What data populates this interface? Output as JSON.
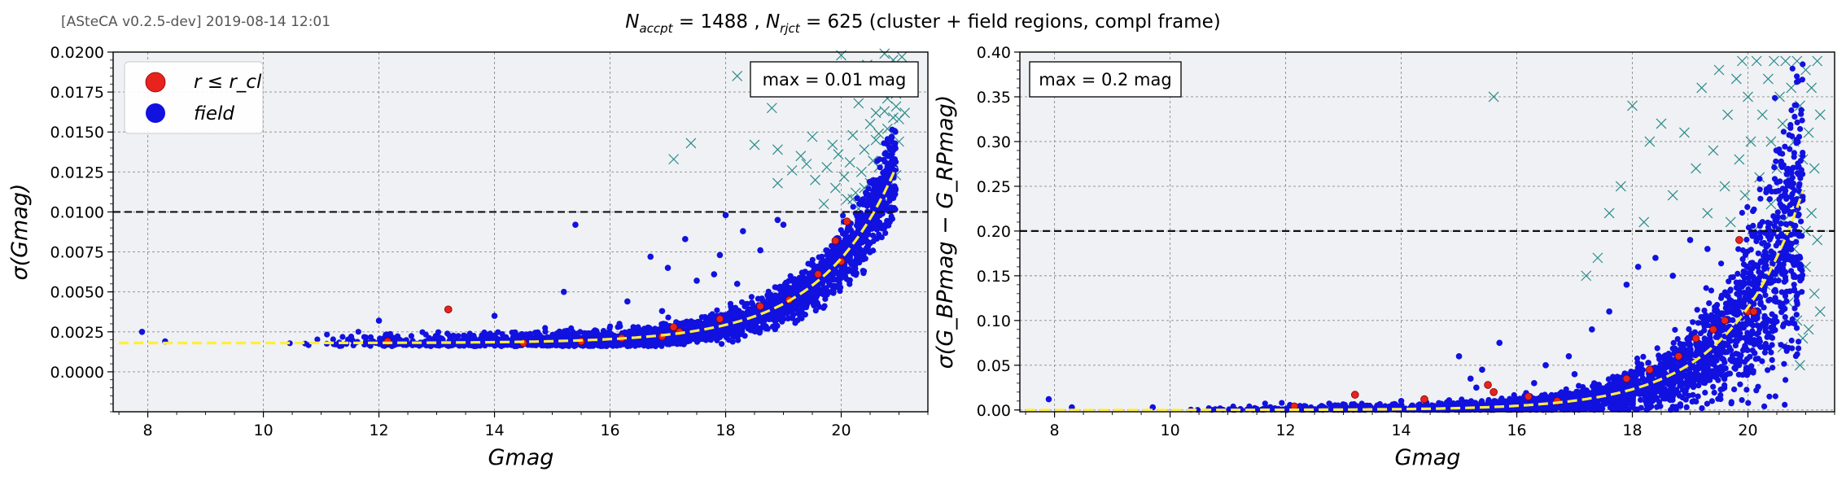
{
  "header": {
    "version_stamp": "[ASteCA v0.2.5-dev] 2019-08-14 12:01",
    "title_n_accpt": "1488",
    "title_n_rjct": "625",
    "title_suffix": "(cluster + field regions, compl frame)"
  },
  "colors": {
    "background": "#eff1f4",
    "cluster": "#e8231e",
    "field": "#1111e0",
    "rejected": "#2b8a8a",
    "fit_curve": "#ffef3a",
    "max_line": "#111111",
    "grid": "#8a8a8a"
  },
  "legend": {
    "cluster_label": "r ≤ r_cl",
    "field_label": "field"
  },
  "chart_data": [
    {
      "type": "scatter",
      "xlabel": "Gmag",
      "ylabel": "σ(Gmag)",
      "xlim": [
        7.4,
        21.5
      ],
      "ylim": [
        -0.0025,
        0.02
      ],
      "xticks": [
        8,
        10,
        12,
        14,
        16,
        18,
        20
      ],
      "yticks": [
        0.0,
        0.0025,
        0.005,
        0.0075,
        0.01,
        0.0125,
        0.015,
        0.0175,
        0.02
      ],
      "ytick_labels": [
        "0.0000",
        "0.0025",
        "0.0050",
        "0.0075",
        "0.0100",
        "0.0125",
        "0.0150",
        "0.0175",
        "0.0200"
      ],
      "max_line": 0.01,
      "annotation": "max = 0.01 mag",
      "legend": "top-left",
      "grid": true,
      "fit_curve": {
        "floor": 0.0018,
        "amp": 3.5e-07,
        "rate": 0.77,
        "x0": 7.5,
        "x1": 20.95
      },
      "rejected_points": [
        [
          18.2,
          0.0185
        ],
        [
          18.6,
          0.0179
        ],
        [
          18.8,
          0.0165
        ],
        [
          17.1,
          0.0133
        ],
        [
          17.4,
          0.0143
        ],
        [
          18.5,
          0.0142
        ],
        [
          18.9,
          0.0139
        ],
        [
          18.9,
          0.0118
        ],
        [
          19.15,
          0.0126
        ],
        [
          19.3,
          0.0135
        ],
        [
          19.4,
          0.013
        ],
        [
          19.5,
          0.0147
        ],
        [
          19.55,
          0.012
        ],
        [
          19.7,
          0.0105
        ],
        [
          19.75,
          0.0128
        ],
        [
          19.85,
          0.0142
        ],
        [
          19.9,
          0.0115
        ],
        [
          19.95,
          0.0136
        ],
        [
          20.0,
          0.0198
        ],
        [
          20.05,
          0.0122
        ],
        [
          20.1,
          0.0108
        ],
        [
          20.15,
          0.0131
        ],
        [
          20.2,
          0.0148
        ],
        [
          20.25,
          0.0112
        ],
        [
          20.3,
          0.0168
        ],
        [
          20.35,
          0.0125
        ],
        [
          20.4,
          0.0139
        ],
        [
          20.45,
          0.0192
        ],
        [
          20.5,
          0.0155
        ],
        [
          20.5,
          0.0118
        ],
        [
          20.55,
          0.0184
        ],
        [
          20.6,
          0.0145
        ],
        [
          20.6,
          0.0162
        ],
        [
          20.65,
          0.0128
        ],
        [
          20.7,
          0.0178
        ],
        [
          20.7,
          0.0105
        ],
        [
          20.75,
          0.0199
        ],
        [
          20.8,
          0.0152
        ],
        [
          20.8,
          0.0171
        ],
        [
          20.85,
          0.0136
        ],
        [
          20.85,
          0.0188
        ],
        [
          20.9,
          0.0159
        ],
        [
          20.9,
          0.0195
        ],
        [
          20.95,
          0.0166
        ],
        [
          20.95,
          0.0123
        ],
        [
          21.0,
          0.0183
        ],
        [
          21.0,
          0.0144
        ],
        [
          21.05,
          0.0176
        ],
        [
          21.05,
          0.0197
        ],
        [
          21.1,
          0.0162
        ],
        [
          21.1,
          0.0189
        ],
        [
          20.3,
          0.0102
        ],
        [
          20.4,
          0.0115
        ],
        [
          20.2,
          0.0108
        ],
        [
          20.55,
          0.0132
        ],
        [
          20.65,
          0.0149
        ],
        [
          20.75,
          0.0163
        ],
        [
          20.95,
          0.0174
        ],
        [
          21.0,
          0.0158
        ],
        [
          20.85,
          0.0119
        ]
      ],
      "field_outliers": [
        [
          7.9,
          0.0025
        ],
        [
          8.3,
          0.0019
        ],
        [
          12.0,
          0.0032
        ],
        [
          15.4,
          0.0092
        ],
        [
          15.2,
          0.005
        ],
        [
          14.0,
          0.0035
        ],
        [
          16.7,
          0.0072
        ],
        [
          17.0,
          0.0065
        ],
        [
          17.3,
          0.0083
        ],
        [
          18.0,
          0.0098
        ],
        [
          18.3,
          0.0088
        ],
        [
          17.8,
          0.0061
        ],
        [
          16.3,
          0.0044
        ],
        [
          18.6,
          0.0076
        ],
        [
          19.0,
          0.0092
        ],
        [
          17.5,
          0.0057
        ],
        [
          16.9,
          0.0038
        ],
        [
          18.9,
          0.0095
        ],
        [
          17.9,
          0.0073
        ],
        [
          18.2,
          0.0055
        ]
      ],
      "cluster_points": [
        [
          13.2,
          0.0039
        ],
        [
          12.15,
          0.0019
        ],
        [
          14.5,
          0.0018
        ],
        [
          15.5,
          0.0019
        ],
        [
          16.2,
          0.0021
        ],
        [
          17.1,
          0.0028
        ],
        [
          17.2,
          0.0025
        ],
        [
          17.9,
          0.0033
        ],
        [
          18.6,
          0.0041
        ],
        [
          19.1,
          0.0045
        ],
        [
          19.6,
          0.0061
        ],
        [
          19.9,
          0.0082
        ],
        [
          20.0,
          0.0069
        ],
        [
          20.1,
          0.0094
        ],
        [
          16.9,
          0.0022
        ]
      ]
    },
    {
      "type": "scatter",
      "xlabel": "Gmag",
      "ylabel": "σ(G_BPmag − G_RPmag)",
      "xlim": [
        7.4,
        21.5
      ],
      "ylim": [
        -0.002,
        0.4
      ],
      "xticks": [
        8,
        10,
        12,
        14,
        16,
        18,
        20
      ],
      "yticks": [
        0.0,
        0.05,
        0.1,
        0.15,
        0.2,
        0.25,
        0.3,
        0.35,
        0.4
      ],
      "ytick_labels": [
        "0.00",
        "0.05",
        "0.10",
        "0.15",
        "0.20",
        "0.25",
        "0.30",
        "0.35",
        "0.40"
      ],
      "max_line": 0.2,
      "annotation": "max = 0.2 mag",
      "grid": true,
      "fit_curve": {
        "floor": 0.0,
        "amp": 5.2e-06,
        "rate": 0.8,
        "x0": 7.5,
        "x1": 20.95
      },
      "rejected_points": [
        [
          15.6,
          0.35
        ],
        [
          18.0,
          0.34
        ],
        [
          18.3,
          0.3
        ],
        [
          17.8,
          0.25
        ],
        [
          17.6,
          0.22
        ],
        [
          17.4,
          0.17
        ],
        [
          17.2,
          0.15
        ],
        [
          18.2,
          0.21
        ],
        [
          18.5,
          0.32
        ],
        [
          18.7,
          0.24
        ],
        [
          18.9,
          0.31
        ],
        [
          19.1,
          0.27
        ],
        [
          19.2,
          0.36
        ],
        [
          19.3,
          0.22
        ],
        [
          19.4,
          0.29
        ],
        [
          19.5,
          0.38
        ],
        [
          19.6,
          0.25
        ],
        [
          19.65,
          0.33
        ],
        [
          19.7,
          0.21
        ],
        [
          19.8,
          0.37
        ],
        [
          19.85,
          0.28
        ],
        [
          19.9,
          0.39
        ],
        [
          19.95,
          0.24
        ],
        [
          20.0,
          0.35
        ],
        [
          20.05,
          0.3
        ],
        [
          20.1,
          0.2
        ],
        [
          20.15,
          0.39
        ],
        [
          20.2,
          0.26
        ],
        [
          20.25,
          0.33
        ],
        [
          20.3,
          0.18
        ],
        [
          20.35,
          0.37
        ],
        [
          20.4,
          0.23
        ],
        [
          20.4,
          0.3
        ],
        [
          20.45,
          0.39
        ],
        [
          20.5,
          0.15
        ],
        [
          20.5,
          0.27
        ],
        [
          20.55,
          0.35
        ],
        [
          20.6,
          0.21
        ],
        [
          20.6,
          0.32
        ],
        [
          20.65,
          0.39
        ],
        [
          20.7,
          0.12
        ],
        [
          20.7,
          0.26
        ],
        [
          20.75,
          0.36
        ],
        [
          20.8,
          0.18
        ],
        [
          20.8,
          0.3
        ],
        [
          20.85,
          0.39
        ],
        [
          20.85,
          0.1
        ],
        [
          20.9,
          0.24
        ],
        [
          20.9,
          0.34
        ],
        [
          20.95,
          0.08
        ],
        [
          20.95,
          0.28
        ],
        [
          21.0,
          0.38
        ],
        [
          21.0,
          0.16
        ],
        [
          21.05,
          0.31
        ],
        [
          21.05,
          0.09
        ],
        [
          21.1,
          0.22
        ],
        [
          21.1,
          0.36
        ],
        [
          21.15,
          0.13
        ],
        [
          21.15,
          0.27
        ],
        [
          21.2,
          0.39
        ],
        [
          21.2,
          0.19
        ],
        [
          21.25,
          0.33
        ],
        [
          21.25,
          0.11
        ],
        [
          20.3,
          0.14
        ],
        [
          20.2,
          0.11
        ],
        [
          20.6,
          0.07
        ],
        [
          20.9,
          0.05
        ],
        [
          21.0,
          0.2
        ],
        [
          20.75,
          0.22
        ],
        [
          20.45,
          0.17
        ]
      ],
      "field_outliers": [
        [
          7.9,
          0.012
        ],
        [
          8.3,
          0.003
        ],
        [
          9.7,
          0.003
        ],
        [
          12.1,
          0.002
        ],
        [
          14.0,
          0.01
        ],
        [
          15.0,
          0.06
        ],
        [
          15.2,
          0.035
        ],
        [
          15.3,
          0.025
        ],
        [
          15.7,
          0.075
        ],
        [
          15.4,
          0.045
        ],
        [
          16.5,
          0.05
        ],
        [
          16.9,
          0.06
        ],
        [
          17.3,
          0.09
        ],
        [
          17.6,
          0.11
        ],
        [
          17.9,
          0.14
        ],
        [
          18.1,
          0.16
        ],
        [
          18.4,
          0.17
        ],
        [
          18.7,
          0.15
        ],
        [
          19.0,
          0.19
        ],
        [
          19.3,
          0.18
        ],
        [
          16.3,
          0.03
        ],
        [
          17.0,
          0.04
        ]
      ],
      "cluster_points": [
        [
          12.15,
          0.004
        ],
        [
          13.2,
          0.017
        ],
        [
          14.4,
          0.012
        ],
        [
          15.5,
          0.028
        ],
        [
          15.6,
          0.02
        ],
        [
          16.7,
          0.01
        ],
        [
          17.9,
          0.035
        ],
        [
          18.3,
          0.045
        ],
        [
          18.8,
          0.06
        ],
        [
          19.1,
          0.08
        ],
        [
          19.4,
          0.09
        ],
        [
          19.6,
          0.1
        ],
        [
          20.0,
          0.11
        ],
        [
          20.1,
          0.11
        ],
        [
          19.85,
          0.19
        ],
        [
          16.2,
          0.015
        ]
      ]
    }
  ]
}
